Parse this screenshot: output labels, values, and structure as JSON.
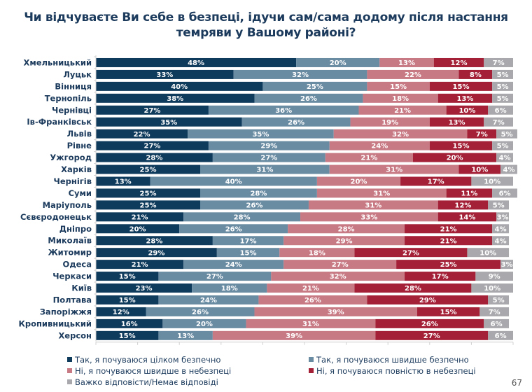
{
  "chart_data": {
    "type": "bar",
    "orientation": "horizontal",
    "stacked": true,
    "title": "Чи відчуваєте Ви себе в безпеці, ідучи сам/сама додому після настання темряви у Вашому районі?",
    "xlabel": "",
    "ylabel": "",
    "xlim": [
      0,
      100
    ],
    "x_ticks": [
      "0%",
      "10%",
      "20%",
      "30%",
      "40%",
      "50%",
      "60%",
      "70%",
      "80%",
      "90%",
      "100%"
    ],
    "legend_position": "bottom",
    "grid": false,
    "categories": [
      "Хмельницький",
      "Луцьк",
      "Вінниця",
      "Тернопіль",
      "Чернівці",
      "Ів-Франківськ",
      "Львів",
      "Рівне",
      "Ужгород",
      "Харків",
      "Чернігів",
      "Суми",
      "Маріуполь",
      "Сєвєродонецьк",
      "Дніпро",
      "Миколаїв",
      "Житомир",
      "Одеса",
      "Черкаси",
      "Київ",
      "Полтава",
      "Запоріжжя",
      "Кропивницький",
      "Херсон"
    ],
    "series": [
      {
        "name": "Так, я почуваюся цілком безпечно",
        "color": "#0e3a5c",
        "values": [
          48,
          33,
          40,
          38,
          27,
          35,
          22,
          27,
          28,
          25,
          13,
          25,
          25,
          21,
          20,
          28,
          29,
          21,
          15,
          23,
          15,
          12,
          16,
          15
        ]
      },
      {
        "name": "Так, я почуваюся швидше безпечно",
        "color": "#6a8ca3",
        "values": [
          20,
          32,
          25,
          26,
          36,
          26,
          35,
          29,
          27,
          31,
          40,
          28,
          26,
          28,
          26,
          17,
          15,
          24,
          27,
          18,
          24,
          26,
          20,
          13
        ]
      },
      {
        "name": "Ні, я почуваюся швидше в небезпеці",
        "color": "#c87a84",
        "values": [
          13,
          22,
          15,
          18,
          21,
          19,
          32,
          24,
          21,
          31,
          20,
          31,
          31,
          33,
          28,
          29,
          18,
          27,
          32,
          21,
          26,
          39,
          31,
          39
        ]
      },
      {
        "name": "Ні, я почуваюся повністю в небезпеці",
        "color": "#a32036",
        "values": [
          12,
          8,
          15,
          13,
          10,
          13,
          7,
          15,
          20,
          10,
          17,
          11,
          12,
          14,
          21,
          21,
          27,
          25,
          17,
          28,
          29,
          15,
          26,
          27
        ]
      },
      {
        "name": "Важко відповісти/Немає відповіді",
        "color": "#a9a9ad",
        "values": [
          7,
          5,
          5,
          5,
          6,
          7,
          5,
          5,
          4,
          4,
          10,
          6,
          5,
          3,
          4,
          4,
          10,
          3,
          9,
          10,
          5,
          7,
          6,
          6
        ]
      }
    ]
  },
  "legend": [
    {
      "label": "Так, я почуваюся цілком безпечно",
      "color": "#0e3a5c"
    },
    {
      "label": "Так, я почуваюся швидше безпечно",
      "color": "#6a8ca3"
    },
    {
      "label": "Ні, я почуваюся швидше в небезпеці",
      "color": "#c87a84"
    },
    {
      "label": "Ні, я почуваюся повністю в небезпеці",
      "color": "#a32036"
    },
    {
      "label": "Важко відповісти/Немає відповіді",
      "color": "#a9a9ad"
    }
  ],
  "page_number": "67"
}
